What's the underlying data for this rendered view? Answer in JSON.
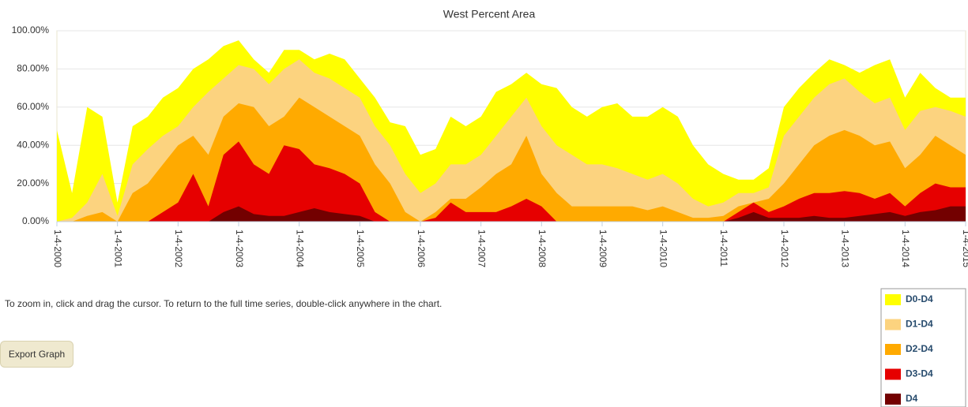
{
  "chart_data": {
    "type": "area",
    "title": "West Percent Area",
    "x": [
      2000,
      2000.25,
      2000.5,
      2000.75,
      2001,
      2001.25,
      2001.5,
      2001.75,
      2002,
      2002.25,
      2002.5,
      2002.75,
      2003,
      2003.25,
      2003.5,
      2003.75,
      2004,
      2004.25,
      2004.5,
      2004.75,
      2005,
      2005.25,
      2005.5,
      2005.75,
      2006,
      2006.25,
      2006.5,
      2006.75,
      2007,
      2007.25,
      2007.5,
      2007.75,
      2008,
      2008.25,
      2008.5,
      2008.75,
      2009,
      2009.25,
      2009.5,
      2009.75,
      2010,
      2010.25,
      2010.5,
      2010.75,
      2011,
      2011.25,
      2011.5,
      2011.75,
      2012,
      2012.25,
      2012.5,
      2012.75,
      2013,
      2013.25,
      2013.5,
      2013.75,
      2014,
      2014.25,
      2014.5,
      2014.75,
      2015
    ],
    "series": [
      {
        "name": "D0-D4",
        "color": "#ffff00",
        "values": [
          48,
          15,
          60,
          55,
          10,
          50,
          55,
          65,
          70,
          80,
          85,
          92,
          95,
          85,
          78,
          90,
          90,
          85,
          88,
          85,
          75,
          65,
          52,
          50,
          35,
          38,
          55,
          50,
          55,
          68,
          72,
          78,
          72,
          70,
          60,
          55,
          60,
          62,
          55,
          55,
          60,
          55,
          40,
          30,
          25,
          22,
          22,
          28,
          60,
          70,
          78,
          85,
          82,
          78,
          82,
          85,
          65,
          78,
          70,
          65,
          65
        ]
      },
      {
        "name": "D1-D4",
        "color": "#fcd37f",
        "values": [
          0,
          2,
          10,
          25,
          3,
          30,
          38,
          45,
          50,
          60,
          68,
          75,
          82,
          80,
          72,
          80,
          85,
          78,
          75,
          70,
          65,
          50,
          40,
          25,
          15,
          20,
          30,
          30,
          35,
          45,
          55,
          65,
          50,
          40,
          35,
          30,
          30,
          28,
          25,
          22,
          25,
          20,
          12,
          8,
          10,
          15,
          15,
          18,
          45,
          55,
          65,
          72,
          75,
          68,
          62,
          65,
          48,
          58,
          60,
          58,
          55
        ]
      },
      {
        "name": "D2-D4",
        "color": "#ffaa00",
        "values": [
          0,
          0,
          3,
          5,
          0,
          15,
          20,
          30,
          40,
          45,
          35,
          55,
          62,
          60,
          50,
          55,
          65,
          60,
          55,
          50,
          45,
          30,
          20,
          5,
          0,
          5,
          12,
          12,
          18,
          25,
          30,
          45,
          25,
          15,
          8,
          8,
          8,
          8,
          8,
          6,
          8,
          5,
          2,
          2,
          3,
          8,
          10,
          12,
          20,
          30,
          40,
          45,
          48,
          45,
          40,
          42,
          28,
          35,
          45,
          40,
          35
        ]
      },
      {
        "name": "D3-D4",
        "color": "#e60000",
        "values": [
          0,
          0,
          0,
          0,
          0,
          0,
          0,
          5,
          10,
          25,
          8,
          35,
          42,
          30,
          25,
          40,
          38,
          30,
          28,
          25,
          20,
          5,
          0,
          0,
          0,
          2,
          10,
          5,
          5,
          5,
          8,
          12,
          8,
          0,
          0,
          0,
          0,
          0,
          0,
          0,
          0,
          0,
          0,
          0,
          0,
          5,
          10,
          5,
          8,
          12,
          15,
          15,
          16,
          15,
          12,
          15,
          8,
          15,
          20,
          18,
          18
        ]
      },
      {
        "name": "D4",
        "color": "#730000",
        "values": [
          0,
          0,
          0,
          0,
          0,
          0,
          0,
          0,
          0,
          0,
          0,
          5,
          8,
          4,
          3,
          3,
          5,
          7,
          5,
          4,
          3,
          0,
          0,
          0,
          0,
          0,
          0,
          0,
          0,
          0,
          0,
          0,
          0,
          0,
          0,
          0,
          0,
          0,
          0,
          0,
          0,
          0,
          0,
          0,
          0,
          2,
          5,
          2,
          2,
          2,
          3,
          2,
          2,
          3,
          4,
          5,
          3,
          5,
          6,
          8,
          8
        ]
      }
    ],
    "xlim": [
      2000,
      2015
    ],
    "xticks": [
      {
        "value": 2000,
        "label": "1-4-2000"
      },
      {
        "value": 2001,
        "label": "1-4-2001"
      },
      {
        "value": 2002,
        "label": "1-4-2002"
      },
      {
        "value": 2003,
        "label": "1-4-2003"
      },
      {
        "value": 2004,
        "label": "1-4-2004"
      },
      {
        "value": 2005,
        "label": "1-4-2005"
      },
      {
        "value": 2006,
        "label": "1-4-2006"
      },
      {
        "value": 2007,
        "label": "1-4-2007"
      },
      {
        "value": 2008,
        "label": "1-4-2008"
      },
      {
        "value": 2009,
        "label": "1-4-2009"
      },
      {
        "value": 2010,
        "label": "1-4-2010"
      },
      {
        "value": 2011,
        "label": "1-4-2011"
      },
      {
        "value": 2012,
        "label": "1-4-2012"
      },
      {
        "value": 2013,
        "label": "1-4-2013"
      },
      {
        "value": 2014,
        "label": "1-4-2014"
      },
      {
        "value": 2015,
        "label": "1-4-2015"
      }
    ],
    "ylim": [
      0,
      100
    ],
    "yticks": [
      {
        "value": 0,
        "label": "0.00%"
      },
      {
        "value": 20,
        "label": "20.00%"
      },
      {
        "value": 40,
        "label": "40.00%"
      },
      {
        "value": 60,
        "label": "60.00%"
      },
      {
        "value": 80,
        "label": "80.00%"
      },
      {
        "value": 100,
        "label": "100.00%"
      }
    ],
    "grid": true,
    "legend": "bottom-right"
  },
  "note": "To zoom in, click and drag the cursor. To return to the full time series, double-click anywhere in the chart.",
  "button": "Export Graph"
}
